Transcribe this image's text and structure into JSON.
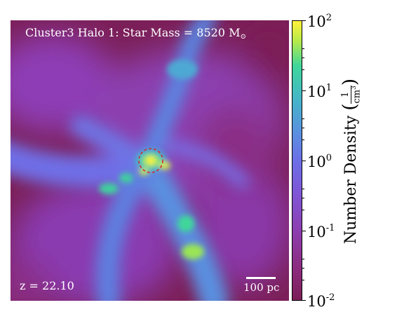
{
  "figure": {
    "title_text": "Cluster3 Halo 1: Star Mass = 8520 M",
    "title_sub": "⊙",
    "redshift_label": "z = 22.10",
    "scalebar_label": "100 pc"
  },
  "colorbar": {
    "axis_title": "Number Density",
    "units_numerator": "1",
    "units_denominator": "cm",
    "units_exponent": "3",
    "ticks": [
      {
        "base": "10",
        "exp": "2"
      },
      {
        "base": "10",
        "exp": "1"
      },
      {
        "base": "10",
        "exp": "0"
      },
      {
        "base": "10",
        "exp": "-1"
      },
      {
        "base": "10",
        "exp": "-2"
      }
    ],
    "scale": "log",
    "colormap_colors": [
      "#7b1f57",
      "#8c3fb0",
      "#6b6fe6",
      "#44b5c8",
      "#3fd79a",
      "#fff23a"
    ]
  },
  "marker": {
    "type": "dashed-circle",
    "color": "#d62728"
  }
}
